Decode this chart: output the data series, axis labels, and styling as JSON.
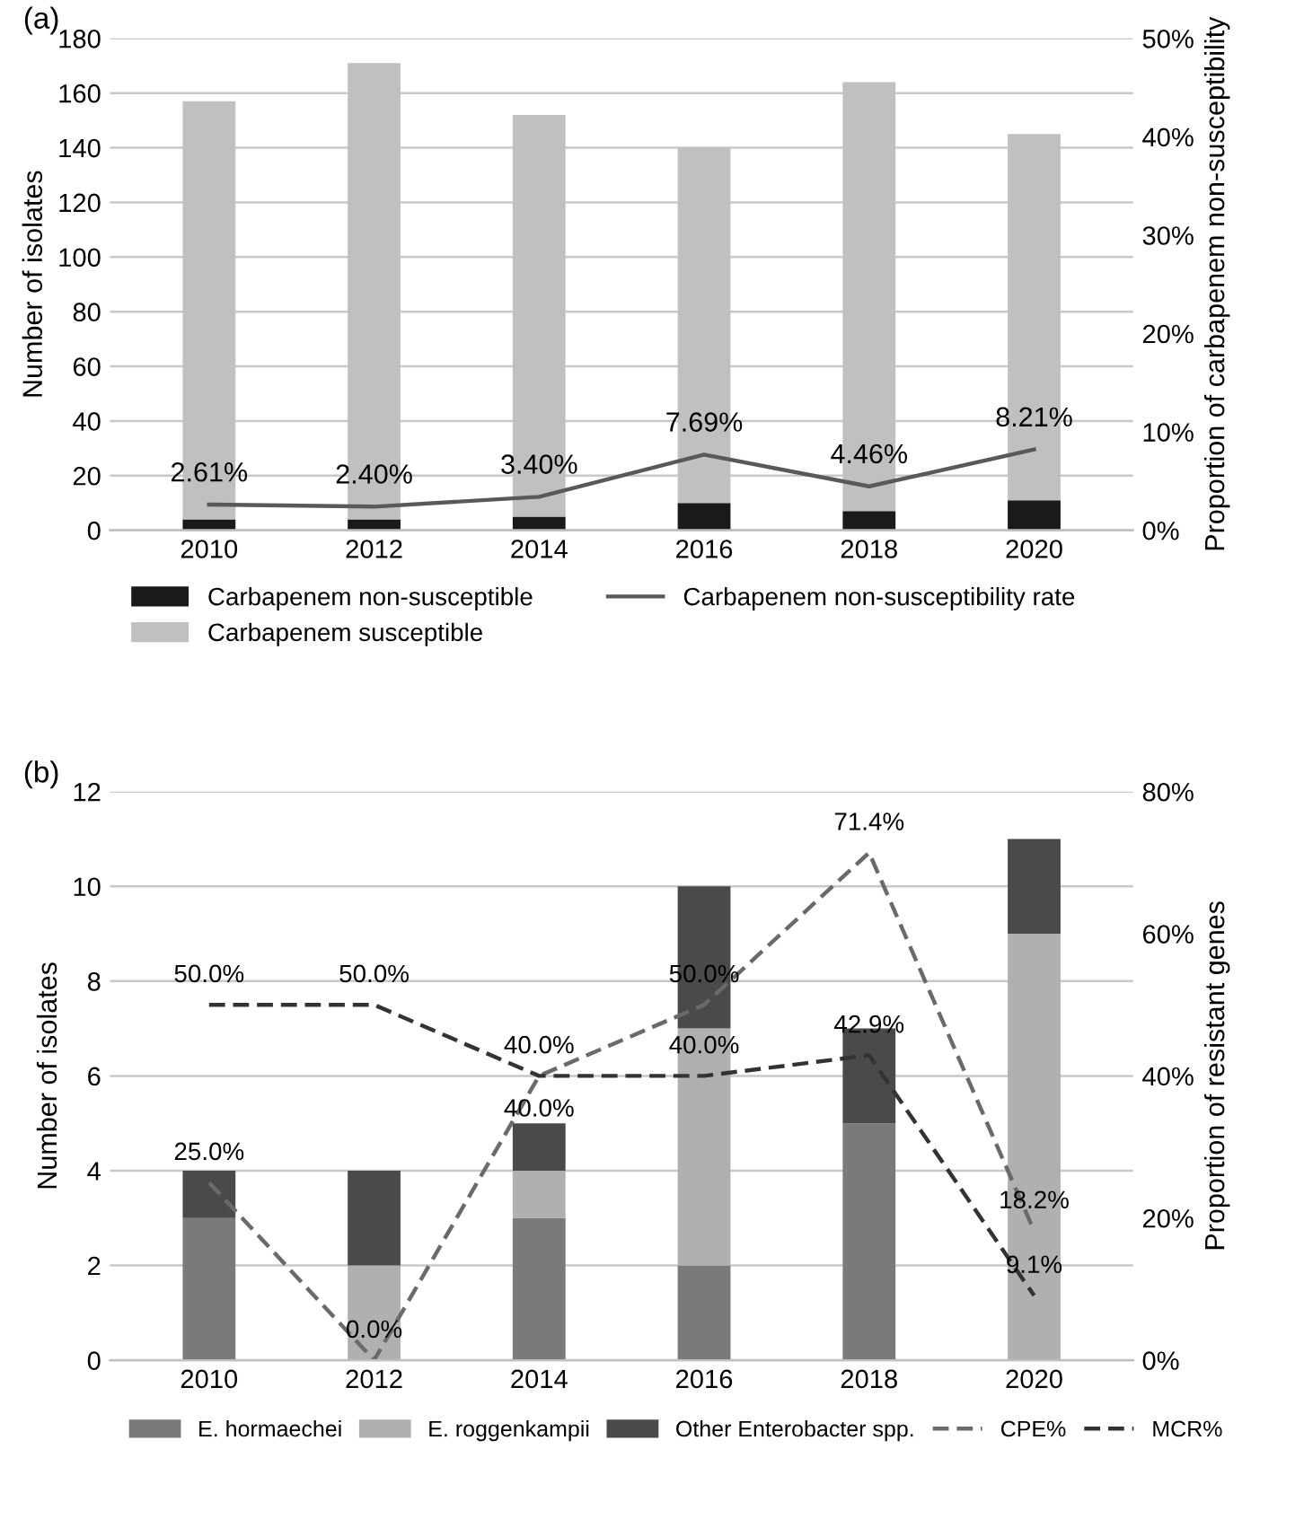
{
  "chart_data": [
    {
      "type": "bar",
      "title": "(a)",
      "ylabel": "Number of isolates",
      "y2label": "Proportion of carbapenem non-susceptibility",
      "categories": [
        "2010",
        "2012",
        "2014",
        "2016",
        "2018",
        "2020"
      ],
      "stacked": true,
      "series": [
        {
          "name": "Carbapenem non-susceptible",
          "color": "#1a1a1a",
          "values": [
            4,
            4,
            5,
            10,
            7,
            11
          ]
        },
        {
          "name": "Carbapenem susceptible",
          "color": "#c0c0c0",
          "values": [
            153,
            167,
            147,
            130,
            157,
            134
          ]
        },
        {
          "name": "Carbapenem non-susceptibility rate",
          "type": "line",
          "axis": "y2",
          "color": "#595959",
          "line_style": "solid",
          "values": [
            2.61,
            2.4,
            3.4,
            7.69,
            4.46,
            8.21
          ],
          "value_labels": [
            "2.61%",
            "2.40%",
            "3.40%",
            "7.69%",
            "4.46%",
            "8.21%"
          ]
        }
      ],
      "ylim": [
        0,
        180
      ],
      "yticks": [
        0,
        20,
        40,
        60,
        80,
        100,
        120,
        140,
        160,
        180
      ],
      "y2lim": [
        0,
        50
      ],
      "y2ticks": [
        {
          "value": 0,
          "label": "0%"
        },
        {
          "value": 10,
          "label": "10%"
        },
        {
          "value": 20,
          "label": "20%"
        },
        {
          "value": 30,
          "label": "30%"
        },
        {
          "value": 40,
          "label": "40%"
        },
        {
          "value": 50,
          "label": "50%"
        }
      ],
      "grid": "y",
      "legend": "bottom"
    },
    {
      "type": "bar",
      "title": "(b)",
      "ylabel": "Number of isolates",
      "y2label": "Proportion of resistant genes",
      "categories": [
        "2010",
        "2012",
        "2014",
        "2016",
        "2018",
        "2020"
      ],
      "stacked": true,
      "series": [
        {
          "name": "E. hormaechei",
          "color": "#7a7a7a",
          "values": [
            3,
            0,
            3,
            2,
            5,
            0
          ]
        },
        {
          "name": "E. roggenkampii",
          "color": "#b0b0b0",
          "values": [
            0,
            2,
            1,
            5,
            0,
            9
          ]
        },
        {
          "name": "Other Enterobacter spp.",
          "color": "#4a4a4a",
          "values": [
            1,
            2,
            1,
            3,
            2,
            2
          ]
        },
        {
          "name": "CPE%",
          "type": "line",
          "axis": "y2",
          "color": "#6a6a6a",
          "line_style": "dashed",
          "values": [
            25.0,
            0.0,
            40.0,
            50.0,
            71.4,
            18.2
          ],
          "value_labels": [
            "25.0%",
            "0.0%",
            "40.0%",
            "50.0%",
            "71.4%",
            "18.2%"
          ]
        },
        {
          "name": "MCR%",
          "type": "line",
          "axis": "y2",
          "color": "#333333",
          "line_style": "dashed",
          "values": [
            50.0,
            50.0,
            40.0,
            40.0,
            42.9,
            9.1
          ],
          "value_labels": [
            "50.0%",
            "50.0%",
            "40.0%",
            "40.0%",
            "42.9%",
            "9.1%"
          ]
        }
      ],
      "ylim": [
        0,
        12
      ],
      "yticks": [
        0,
        2,
        4,
        6,
        8,
        10,
        12
      ],
      "y2lim": [
        0,
        80
      ],
      "y2ticks": [
        {
          "value": 0,
          "label": "0%"
        },
        {
          "value": 20,
          "label": "20%"
        },
        {
          "value": 40,
          "label": "40%"
        },
        {
          "value": 60,
          "label": "60%"
        },
        {
          "value": 80,
          "label": "80%"
        }
      ],
      "grid": "y",
      "legend": "bottom"
    }
  ]
}
